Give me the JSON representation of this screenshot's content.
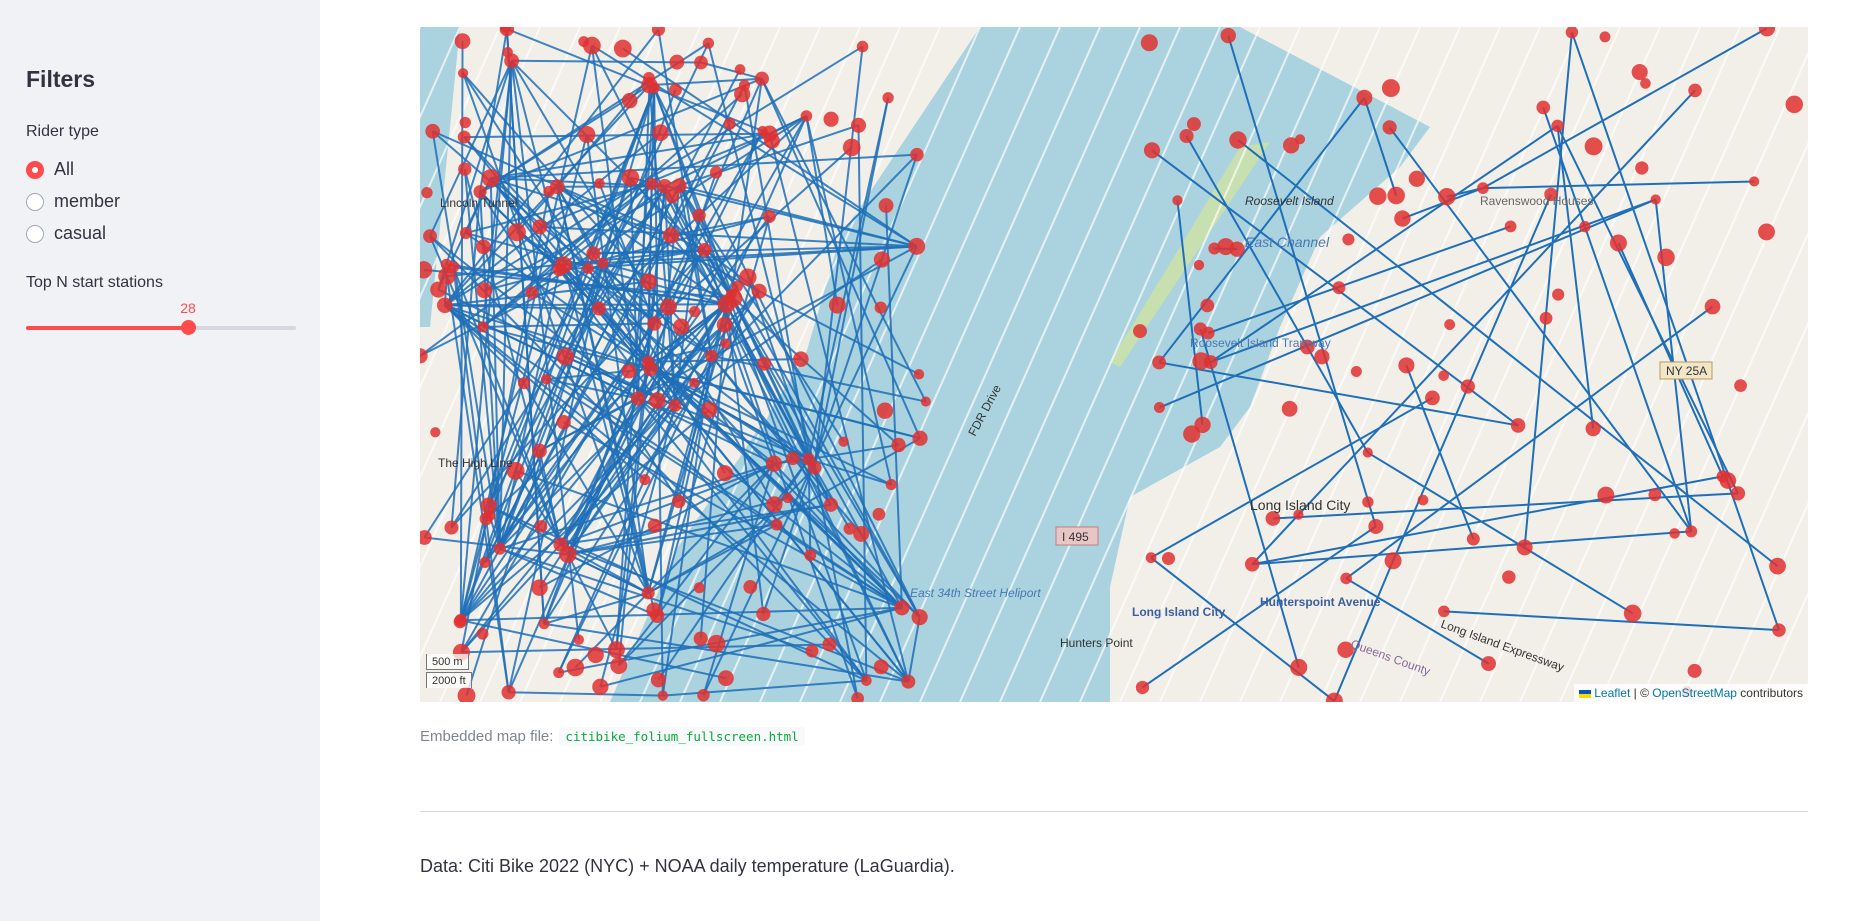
{
  "sidebar": {
    "title": "Filters",
    "rider_type": {
      "label": "Rider type",
      "options": [
        "All",
        "member",
        "casual"
      ],
      "selected": "All"
    },
    "top_n": {
      "label": "Top N start stations",
      "value": "28",
      "fraction": 0.6
    }
  },
  "map": {
    "scale_metric": "500 m",
    "scale_imperial": "2000 ft",
    "attribution": {
      "leaflet": "Leaflet",
      "sep": " | © ",
      "osm": "OpenStreetMap",
      "contributors": " contributors"
    },
    "labels": {
      "roosevelt_island": "Roosevelt Island",
      "east_channel": "East Channel",
      "long_island_city": "Long Island City",
      "lic_south": "Long Island City",
      "hunters_point": "Hunters Point",
      "hunterspoint_avenue": "Hunterspoint Avenue",
      "i495": "I 495",
      "fdr_drive": "FDR Drive",
      "lie": "Long Island Expressway",
      "ravenswood": "Ravenswood Houses",
      "ny25a": "NY 25A",
      "queens_county": "Queens County",
      "tramway": "Roosevelt Island Tramway",
      "lincoln_tunnel": "Lincoln Tunnel",
      "heliport": "East 34th Street Heliport",
      "high_line": "The High Line"
    },
    "colors": {
      "route": "#1f6fb8",
      "station": "#e03030",
      "water": "#aad3df",
      "land": "#f2efe9"
    }
  },
  "caption": {
    "text": "Embedded map file:",
    "file": "citibike_folium_fullscreen.html"
  },
  "footer": {
    "text": "Data: Citi Bike 2022 (NYC) + NOAA daily temperature (LaGuardia)."
  }
}
